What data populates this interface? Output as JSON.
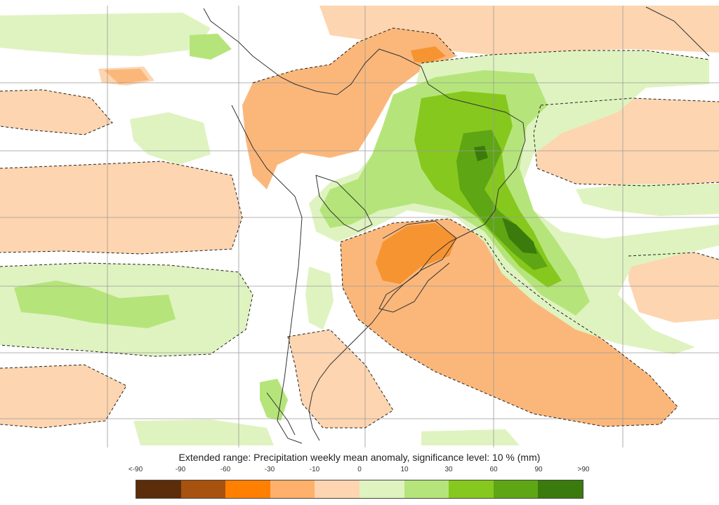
{
  "legend": {
    "title": "Extended range: Precipitation weekly mean anomaly, significance level: 10 % (mm)",
    "tick_labels": [
      "<-90",
      "-90",
      "-60",
      "-30",
      "-10",
      "0",
      "10",
      "30",
      "60",
      "90",
      ">90"
    ],
    "colors": [
      "#5c2d0a",
      "#a8520f",
      "#ff7f00",
      "#ffb06a",
      "#fdd5b0",
      "#dff3c0",
      "#b5e57a",
      "#86c81e",
      "#5fa614",
      "#3b7a0c"
    ]
  },
  "map_colors": {
    "ocean_background": "#ffffff",
    "neutral_negative": "#fdd5b0",
    "moderate_negative": "#fbb77a",
    "strong_negative": "#f79432",
    "neutral_positive": "#dff3c0",
    "moderate_positive": "#b5e57a",
    "strong_positive": "#86c81e",
    "very_strong_positive": "#5fa614",
    "extreme_positive": "#3b7a0c",
    "coastline": "#333333",
    "graticule": "#9a9a9a",
    "significance_contour": "#222222"
  }
}
